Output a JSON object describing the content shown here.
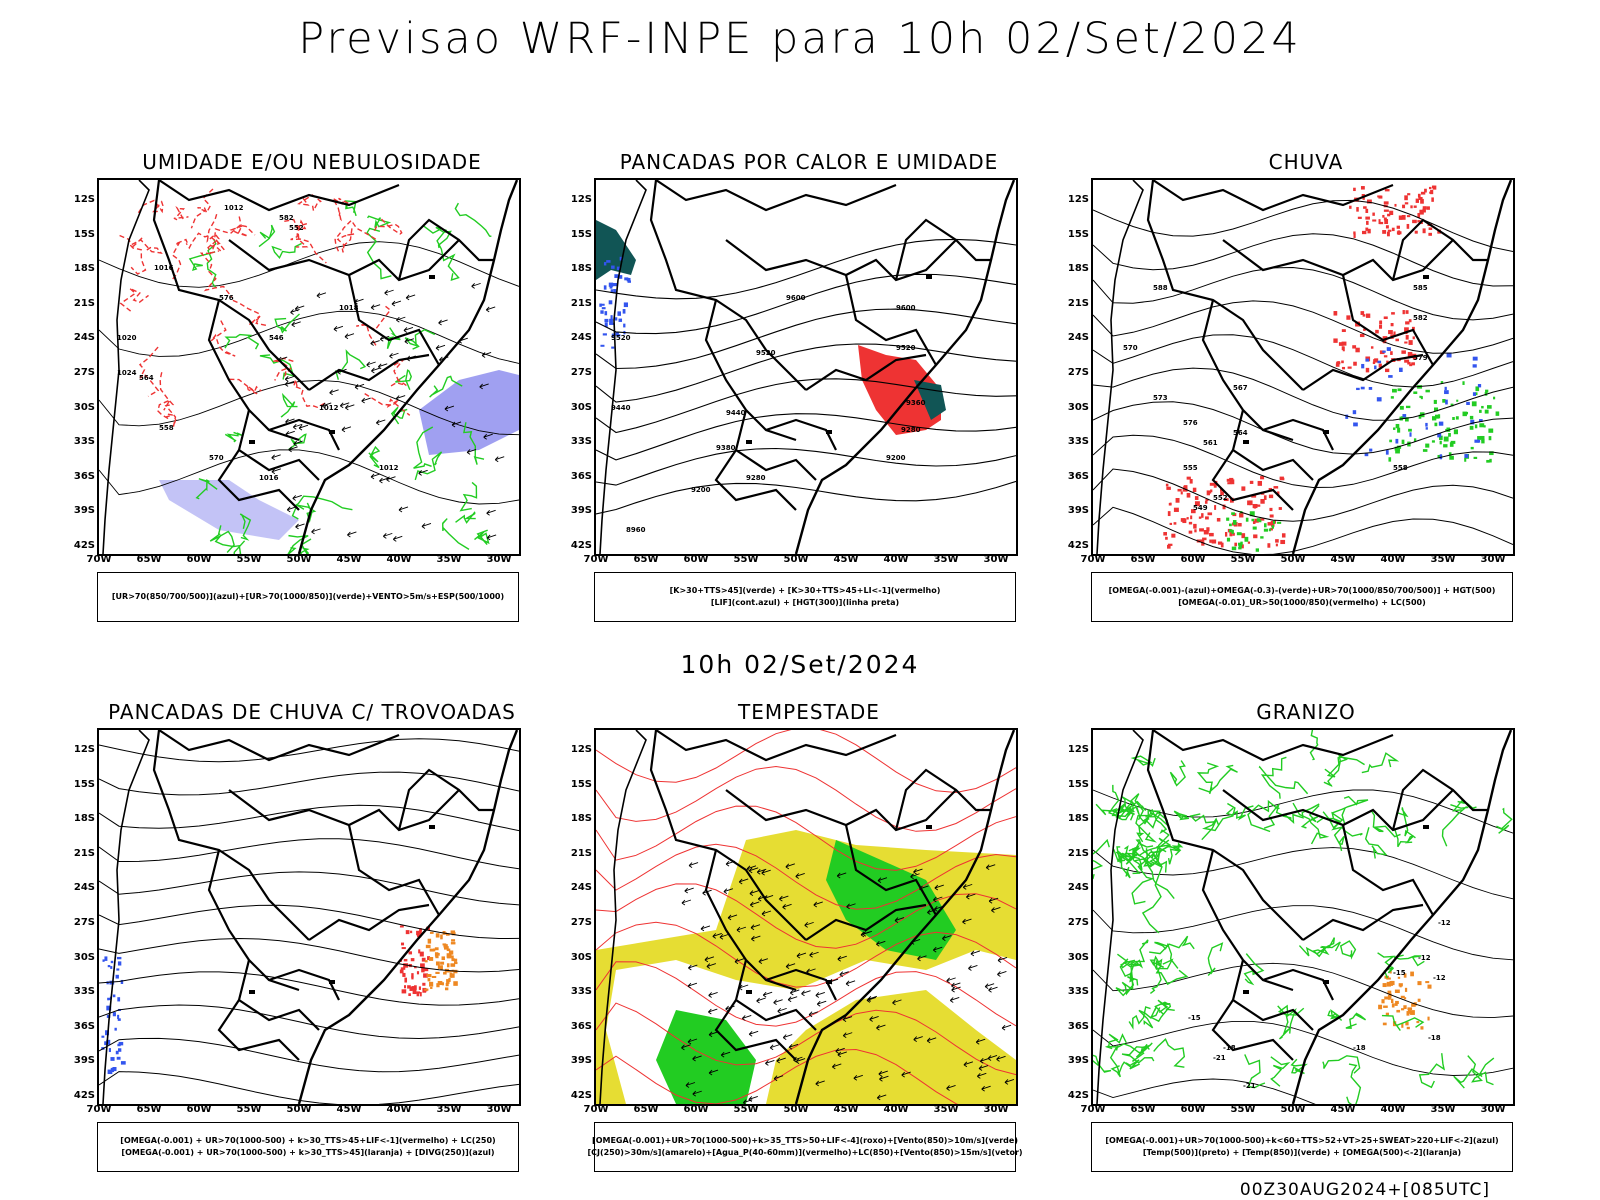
{
  "title": "Previsao WRF-INPE  para 10h 02/Set/2024",
  "mid_title": "10h 02/Set/2024",
  "footer": "00Z30AUG2024+[085UTC]",
  "axes": {
    "lat_labels": [
      "12S",
      "15S",
      "18S",
      "21S",
      "24S",
      "27S",
      "30S",
      "33S",
      "36S",
      "39S",
      "42S"
    ],
    "lon_labels": [
      "70W",
      "65W",
      "60W",
      "55W",
      "50W",
      "45W",
      "40W",
      "35W",
      "30W"
    ]
  },
  "colors": {
    "green": "#22cc22",
    "red": "#ee3333",
    "blue": "#3355ee",
    "orange": "#ee8822",
    "yellow": "#e6dd33",
    "lavender": "#8888ee",
    "darkteal": "#115555"
  },
  "panels": [
    {
      "id": "umidade",
      "title": "UMIDADE E/OU NEBULOSIDADE",
      "legend": [
        "[UR>70(850/700/500)](azul)+[UR>70(1000/850)](verde)+VENTO>5m/s+ESP(500/1000)"
      ],
      "contour_labels": [
        "1012",
        "1016",
        "1018",
        "1012",
        "1016",
        "1012",
        "570",
        "576",
        "564",
        "558",
        "552",
        "546",
        "582",
        "1020",
        "1024"
      ]
    },
    {
      "id": "pancadas_calor",
      "title": "PANCADAS POR CALOR E UMIDADE",
      "legend": [
        "[K>30+TTS>45](verde) + [K>30+TTS>45+LI<-1](vermelho)",
        "[LIF](cont.azul) + [HGT(300)](linha preta)"
      ],
      "contour_labels": [
        "9600",
        "9600",
        "9520",
        "9520",
        "9440",
        "9380",
        "9280",
        "9200",
        "8960",
        "9520",
        "9440",
        "9360",
        "9280",
        "9200"
      ]
    },
    {
      "id": "chuva",
      "title": "CHUVA",
      "legend": [
        "[OMEGA(-0.001)-(azul)+OMEGA(-0.3)-(verde)+UR>70(1000/850/700/500)] + HGT(500)",
        "[OMEGA(-0.01)_UR>50(1000/850)(vermelho) + LC(500)"
      ],
      "contour_labels": [
        "585",
        "588",
        "582",
        "579",
        "576",
        "573",
        "570",
        "567",
        "564",
        "561",
        "558",
        "555",
        "552",
        "549"
      ]
    },
    {
      "id": "pancadas_trovoadas",
      "title": "PANCADAS DE CHUVA C/ TROVOADAS",
      "legend": [
        "[OMEGA(-0.001) + UR>70(1000-500) + k>30_TTS>45+LIF<-1](vermelho) + LC(250)",
        "[OMEGA(-0.001) + UR>70(1000-500) + k>30_TTS>45](laranja) + [DIVG(250)](azul)"
      ],
      "contour_labels": []
    },
    {
      "id": "tempestade",
      "title": "TEMPESTADE",
      "legend": [
        "[OMEGA(-0.001)+UR>70(1000-500)+k>35_TTS>50+LIF<-4](roxo)+[Vento(850)>10m/s](verde)",
        "[CJ(250)>30m/s](amarelo)+[Agua_P(40-60mm)](vermelho)+LC(850)+[Vento(850)>15m/s](vetor)"
      ],
      "contour_labels": []
    },
    {
      "id": "granizo",
      "title": "GRANIZO",
      "legend": [
        "[OMEGA(-0.001)+UR>70(1000-500)+k<60+TTS>52+VT>25+SWEAT>220+LIF<-2](azul)",
        "[Temp(500)](preto) + [Temp(850)](verde) + [OMEGA(500)<-2](laranja)"
      ],
      "contour_labels": [
        "-12",
        "-12",
        "-15",
        "-18",
        "-18",
        "-21",
        "-15",
        "-12",
        "-18",
        "-21"
      ]
    }
  ]
}
